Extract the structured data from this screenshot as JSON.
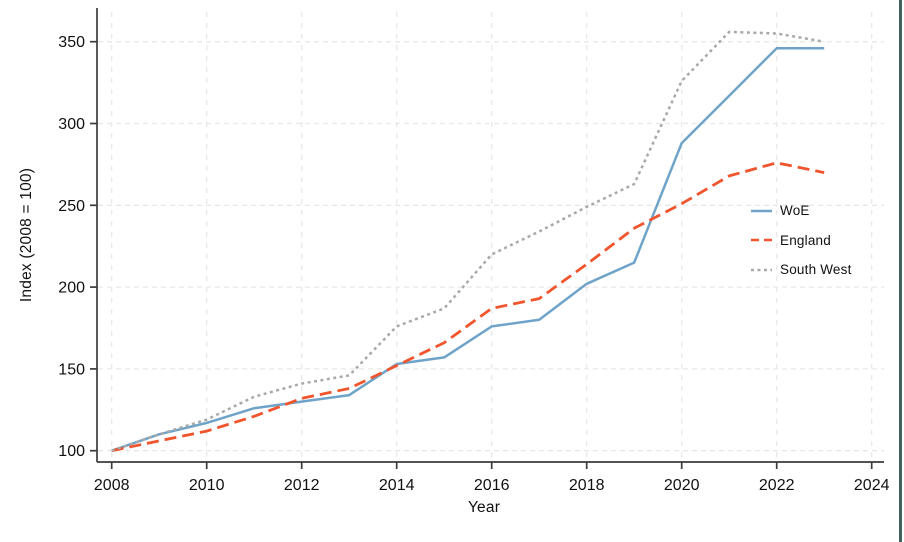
{
  "chart_data": {
    "type": "line",
    "title": "",
    "xlabel": "Year",
    "ylabel": "Index (2008 = 100)",
    "x": [
      2008,
      2009,
      2010,
      2011,
      2012,
      2013,
      2014,
      2015,
      2016,
      2017,
      2018,
      2019,
      2020,
      2021,
      2022,
      2023
    ],
    "series": [
      {
        "name": "WoE",
        "color": "#6fa3c8",
        "style": "solid",
        "values": [
          100,
          110,
          117,
          126,
          130,
          134,
          153,
          157,
          176,
          180,
          202,
          215,
          288,
          317,
          346,
          346
        ]
      },
      {
        "name": "England",
        "color": "#f0552e",
        "style": "dashed",
        "values": [
          100,
          106,
          112,
          121,
          132,
          138,
          152,
          166,
          187,
          193,
          214,
          236,
          251,
          268,
          276,
          270
        ]
      },
      {
        "name": "South West",
        "color": "#a9a9a9",
        "style": "dotted",
        "values": [
          100,
          110,
          119,
          133,
          141,
          146,
          176,
          187,
          220,
          234,
          249,
          263,
          326,
          356,
          355,
          350
        ]
      }
    ],
    "x_ticks": [
      "2008",
      "2010",
      "2012",
      "2014",
      "2016",
      "2018",
      "2020",
      "2022",
      "2024"
    ],
    "x_tick_values": [
      2008,
      2010,
      2012,
      2014,
      2016,
      2018,
      2020,
      2022,
      2024
    ],
    "y_ticks": [
      "100",
      "150",
      "200",
      "250",
      "300",
      "350"
    ],
    "y_tick_values": [
      100,
      150,
      200,
      250,
      300,
      350
    ],
    "xlim": [
      2007.7,
      2024.3
    ],
    "ylim": [
      93,
      370
    ],
    "grid": true,
    "legend_position": "center-right"
  },
  "page": {
    "background": "#ffffff",
    "border_color": "#40605a",
    "grid_color": "#e8e8e8",
    "axis_color": "#3c3c3c",
    "text_color": "#111111"
  }
}
